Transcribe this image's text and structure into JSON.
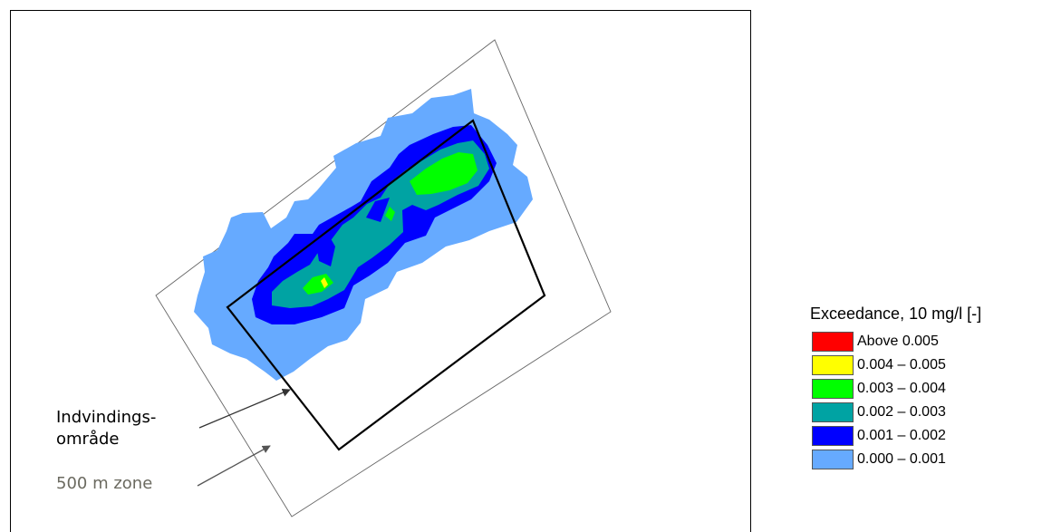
{
  "map": {
    "labels": {
      "indvinding_line1": "Indvindings-",
      "indvinding_line2": "område",
      "zone": "500 m zone"
    }
  },
  "legend": {
    "title": "Exceedance, 10 mg/l [-]",
    "items": [
      {
        "label": "Above 0.005",
        "color": "#ff0000"
      },
      {
        "label": "0.004 – 0.005",
        "color": "#ffff00"
      },
      {
        "label": "0.003 – 0.004",
        "color": "#00ff00"
      },
      {
        "label": "0.002 – 0.003",
        "color": "#00a3a3"
      },
      {
        "label": "0.001 – 0.002",
        "color": "#0000ff"
      },
      {
        "label": "0.000 – 0.001",
        "color": "#66aaff"
      }
    ]
  }
}
